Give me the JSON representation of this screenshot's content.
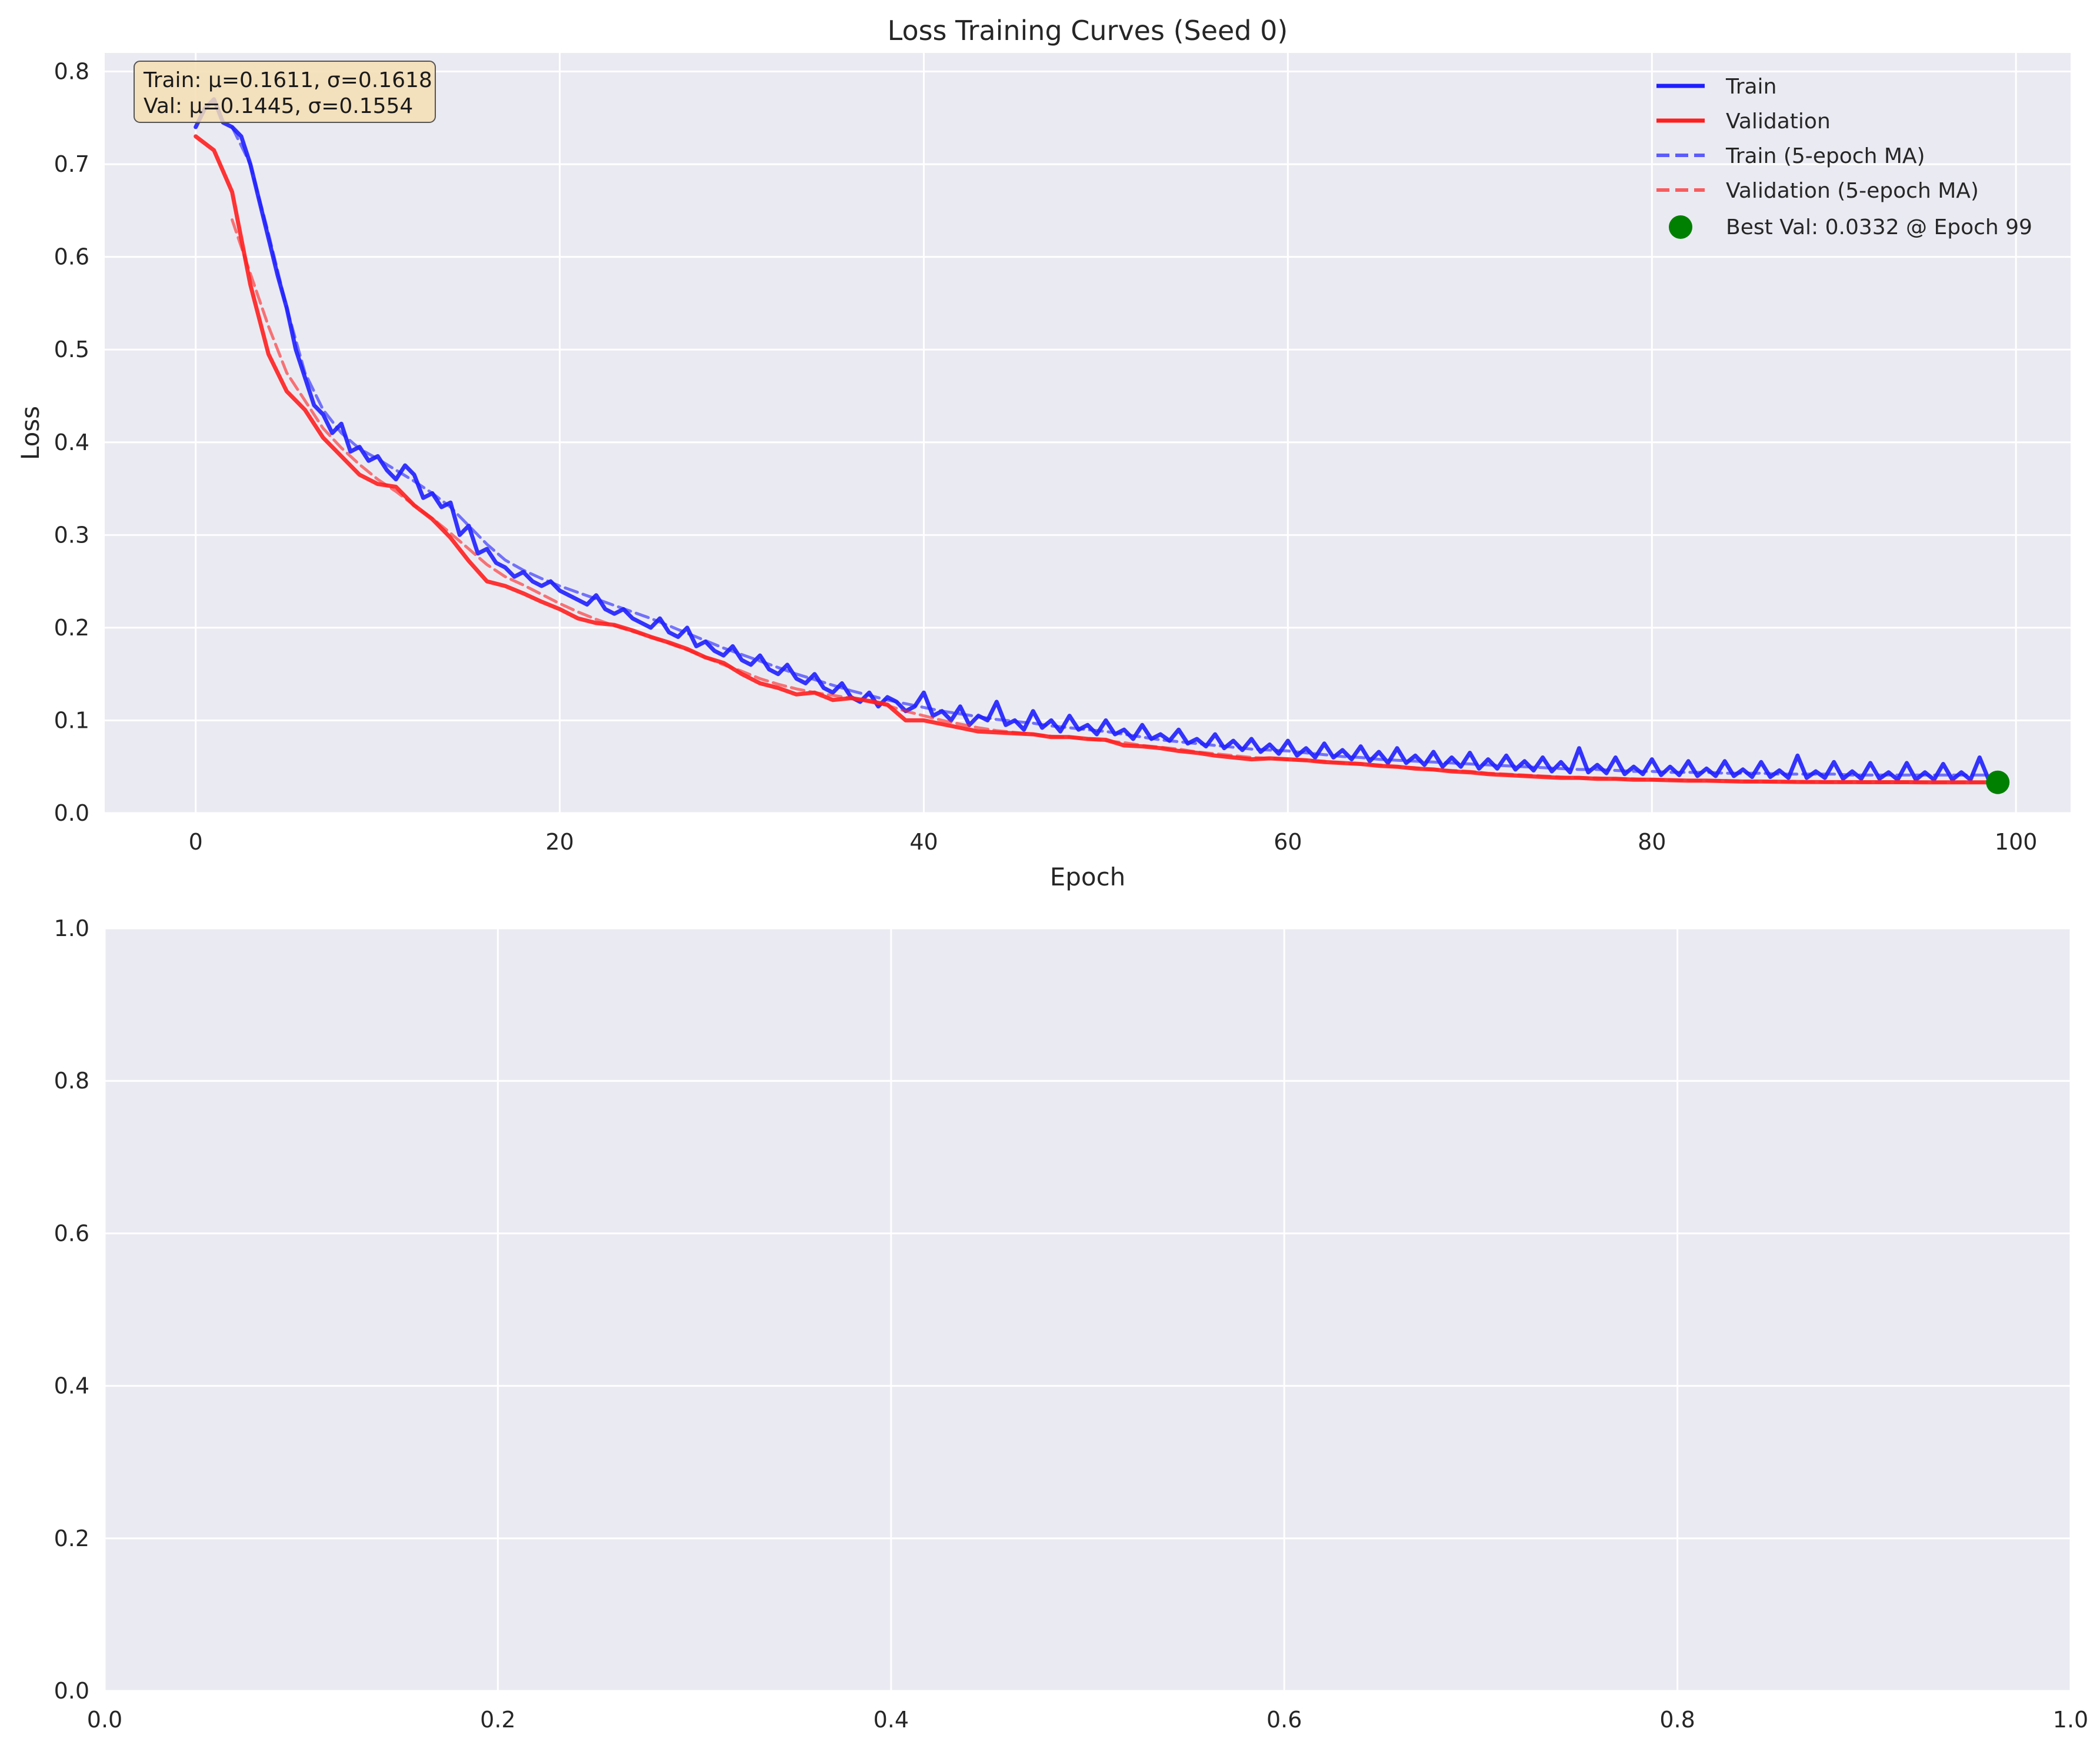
{
  "colors": {
    "axes_bg": "#eaeaf2",
    "grid": "#ffffff",
    "train": "#1f1fff",
    "validation": "#ff1f1f",
    "best_marker": "#008000",
    "stats_box": "#f5deb3"
  },
  "chart_data": [
    {
      "type": "line",
      "title": "Loss Training Curves (Seed 0)",
      "xlabel": "Epoch",
      "ylabel": "Loss",
      "xlim": [
        -5,
        103
      ],
      "ylim": [
        0,
        0.82
      ],
      "xticks": [
        0,
        20,
        40,
        60,
        80,
        100
      ],
      "xtick_labels": [
        "0",
        "20",
        "40",
        "60",
        "80",
        "100"
      ],
      "yticks": [
        0,
        0.1,
        0.2,
        0.3,
        0.4,
        0.5,
        0.6,
        0.7,
        0.8
      ],
      "ytick_labels": [
        "0.0",
        "0.1",
        "0.2",
        "0.3",
        "0.4",
        "0.5",
        "0.6",
        "0.7",
        "0.8"
      ],
      "grid": true,
      "legend_position": "top-right",
      "stats_box": {
        "line1": "Train: μ=0.1611, σ=0.1618",
        "line2": "Val: μ=0.1445, σ=0.1554"
      },
      "series": [
        {
          "name": "Train",
          "style": "solid",
          "x": [
            0,
            0.5,
            1,
            1.5,
            2,
            2.5,
            3,
            3.5,
            4,
            4.5,
            5,
            5.5,
            6,
            6.5,
            7,
            7.5,
            8,
            8.5,
            9,
            9.5,
            10,
            10.5,
            11,
            11.5,
            12,
            12.5,
            13,
            13.5,
            14,
            14.5,
            15,
            15.5,
            16,
            16.5,
            17,
            17.5,
            18,
            18.5,
            19,
            19.5,
            20,
            20.5,
            21,
            21.5,
            22,
            22.5,
            23,
            23.5,
            24,
            24.5,
            25,
            25.5,
            26,
            26.5,
            27,
            27.5,
            28,
            28.5,
            29,
            29.5,
            30,
            30.5,
            31,
            31.5,
            32,
            32.5,
            33,
            33.5,
            34,
            34.5,
            35,
            35.5,
            36,
            36.5,
            37,
            37.5,
            38,
            38.5,
            39,
            39.5,
            40,
            40.5,
            41,
            41.5,
            42,
            42.5,
            43,
            43.5,
            44,
            44.5,
            45,
            45.5,
            46,
            46.5,
            47,
            47.5,
            48,
            48.5,
            49,
            49.5,
            50,
            50.5,
            51,
            51.5,
            52,
            52.5,
            53,
            53.5,
            54,
            54.5,
            55,
            55.5,
            56,
            56.5,
            57,
            57.5,
            58,
            58.5,
            59,
            59.5,
            60,
            60.5,
            61,
            61.5,
            62,
            62.5,
            63,
            63.5,
            64,
            64.5,
            65,
            65.5,
            66,
            66.5,
            67,
            67.5,
            68,
            68.5,
            69,
            69.5,
            70,
            70.5,
            71,
            71.5,
            72,
            72.5,
            73,
            73.5,
            74,
            74.5,
            75,
            75.5,
            76,
            76.5,
            77,
            77.5,
            78,
            78.5,
            79,
            79.5,
            80,
            80.5,
            81,
            81.5,
            82,
            82.5,
            83,
            83.5,
            84,
            84.5,
            85,
            85.5,
            86,
            86.5,
            87,
            87.5,
            88,
            88.5,
            89,
            89.5,
            90,
            90.5,
            91,
            91.5,
            92,
            92.5,
            93,
            93.5,
            94,
            94.5,
            95,
            95.5,
            96,
            96.5,
            97,
            97.5,
            98,
            98.5,
            99
          ],
          "y": [
            0.74,
            0.76,
            0.77,
            0.745,
            0.74,
            0.73,
            0.7,
            0.66,
            0.62,
            0.58,
            0.545,
            0.5,
            0.47,
            0.44,
            0.43,
            0.41,
            0.42,
            0.39,
            0.395,
            0.38,
            0.385,
            0.37,
            0.36,
            0.375,
            0.365,
            0.34,
            0.345,
            0.33,
            0.335,
            0.3,
            0.31,
            0.28,
            0.285,
            0.27,
            0.265,
            0.255,
            0.26,
            0.25,
            0.245,
            0.25,
            0.24,
            0.235,
            0.23,
            0.225,
            0.235,
            0.22,
            0.215,
            0.22,
            0.21,
            0.205,
            0.2,
            0.21,
            0.195,
            0.19,
            0.2,
            0.18,
            0.185,
            0.175,
            0.17,
            0.18,
            0.165,
            0.16,
            0.17,
            0.155,
            0.15,
            0.16,
            0.145,
            0.14,
            0.15,
            0.135,
            0.13,
            0.14,
            0.125,
            0.12,
            0.13,
            0.115,
            0.125,
            0.12,
            0.11,
            0.115,
            0.13,
            0.105,
            0.11,
            0.1,
            0.115,
            0.095,
            0.105,
            0.1,
            0.12,
            0.095,
            0.1,
            0.09,
            0.11,
            0.092,
            0.1,
            0.088,
            0.105,
            0.09,
            0.095,
            0.085,
            0.1,
            0.085,
            0.09,
            0.08,
            0.095,
            0.08,
            0.085,
            0.078,
            0.09,
            0.075,
            0.08,
            0.072,
            0.085,
            0.07,
            0.078,
            0.068,
            0.08,
            0.066,
            0.074,
            0.064,
            0.078,
            0.062,
            0.07,
            0.06,
            0.075,
            0.06,
            0.068,
            0.058,
            0.072,
            0.056,
            0.066,
            0.054,
            0.07,
            0.054,
            0.062,
            0.052,
            0.066,
            0.05,
            0.06,
            0.05,
            0.065,
            0.048,
            0.058,
            0.048,
            0.062,
            0.047,
            0.056,
            0.046,
            0.06,
            0.045,
            0.055,
            0.044,
            0.07,
            0.044,
            0.052,
            0.043,
            0.06,
            0.042,
            0.05,
            0.042,
            0.058,
            0.041,
            0.05,
            0.041,
            0.056,
            0.04,
            0.048,
            0.04,
            0.056,
            0.04,
            0.047,
            0.039,
            0.055,
            0.039,
            0.046,
            0.038,
            0.062,
            0.038,
            0.045,
            0.038,
            0.055,
            0.037,
            0.045,
            0.037,
            0.054,
            0.037,
            0.044,
            0.036,
            0.054,
            0.036,
            0.044,
            0.036,
            0.053,
            0.036,
            0.044,
            0.036,
            0.06,
            0.036,
            0.042
          ]
        },
        {
          "name": "Validation",
          "style": "solid",
          "x": [
            0,
            1,
            2,
            3,
            4,
            5,
            6,
            7,
            8,
            9,
            10,
            11,
            12,
            13,
            14,
            15,
            16,
            17,
            18,
            19,
            20,
            21,
            22,
            23,
            24,
            25,
            26,
            27,
            28,
            29,
            30,
            31,
            32,
            33,
            34,
            35,
            36,
            37,
            38,
            39,
            40,
            41,
            42,
            43,
            44,
            45,
            46,
            47,
            48,
            49,
            50,
            51,
            52,
            53,
            54,
            55,
            56,
            57,
            58,
            59,
            60,
            61,
            62,
            63,
            64,
            65,
            66,
            67,
            68,
            69,
            70,
            71,
            72,
            73,
            74,
            75,
            76,
            77,
            78,
            79,
            80,
            81,
            82,
            83,
            84,
            85,
            86,
            87,
            88,
            89,
            90,
            91,
            92,
            93,
            94,
            95,
            96,
            97,
            98,
            99
          ],
          "y": [
            0.73,
            0.715,
            0.67,
            0.57,
            0.495,
            0.455,
            0.435,
            0.405,
            0.385,
            0.365,
            0.355,
            0.352,
            0.332,
            0.317,
            0.297,
            0.272,
            0.25,
            0.245,
            0.237,
            0.228,
            0.22,
            0.21,
            0.205,
            0.203,
            0.197,
            0.19,
            0.184,
            0.177,
            0.168,
            0.162,
            0.15,
            0.14,
            0.135,
            0.128,
            0.13,
            0.122,
            0.124,
            0.121,
            0.117,
            0.1,
            0.1,
            0.096,
            0.092,
            0.088,
            0.087,
            0.086,
            0.085,
            0.082,
            0.082,
            0.08,
            0.079,
            0.073,
            0.072,
            0.07,
            0.067,
            0.065,
            0.062,
            0.06,
            0.058,
            0.059,
            0.058,
            0.057,
            0.055,
            0.054,
            0.053,
            0.051,
            0.05,
            0.048,
            0.047,
            0.045,
            0.044,
            0.042,
            0.041,
            0.04,
            0.039,
            0.038,
            0.038,
            0.037,
            0.037,
            0.036,
            0.036,
            0.0355,
            0.035,
            0.035,
            0.0345,
            0.034,
            0.034,
            0.0338,
            0.0336,
            0.0335,
            0.0334,
            0.0334,
            0.0333,
            0.0333,
            0.0333,
            0.0332,
            0.0332,
            0.0332,
            0.0332,
            0.0332
          ]
        },
        {
          "name": "Train (5-epoch MA)",
          "style": "dashed",
          "x": [
            2,
            3,
            4,
            5,
            6,
            7,
            8,
            9,
            10,
            11,
            12,
            13,
            14,
            15,
            16,
            17,
            18,
            19,
            20,
            21,
            22,
            23,
            24,
            25,
            26,
            27,
            28,
            29,
            30,
            31,
            32,
            33,
            34,
            35,
            36,
            37,
            38,
            39,
            40,
            41,
            42,
            43,
            44,
            45,
            46,
            47,
            48,
            49,
            50,
            51,
            52,
            53,
            54,
            55,
            56,
            57,
            58,
            59,
            60,
            61,
            62,
            63,
            64,
            65,
            66,
            67,
            68,
            69,
            70,
            71,
            72,
            73,
            74,
            75,
            76,
            77,
            78,
            79,
            80,
            81,
            82,
            83,
            84,
            85,
            86,
            87,
            88,
            89,
            90,
            91,
            92,
            93,
            94,
            95,
            96,
            97,
            98,
            99
          ],
          "y": [
            0.74,
            0.7,
            0.625,
            0.545,
            0.475,
            0.435,
            0.41,
            0.393,
            0.382,
            0.37,
            0.358,
            0.345,
            0.33,
            0.31,
            0.29,
            0.273,
            0.262,
            0.253,
            0.245,
            0.238,
            0.231,
            0.224,
            0.217,
            0.21,
            0.202,
            0.194,
            0.186,
            0.178,
            0.171,
            0.164,
            0.157,
            0.15,
            0.144,
            0.138,
            0.132,
            0.127,
            0.122,
            0.118,
            0.114,
            0.11,
            0.107,
            0.104,
            0.101,
            0.099,
            0.097,
            0.094,
            0.092,
            0.09,
            0.088,
            0.085,
            0.082,
            0.079,
            0.077,
            0.075,
            0.073,
            0.071,
            0.069,
            0.068,
            0.067,
            0.065,
            0.063,
            0.061,
            0.06,
            0.058,
            0.057,
            0.056,
            0.055,
            0.054,
            0.053,
            0.052,
            0.051,
            0.05,
            0.049,
            0.048,
            0.047,
            0.047,
            0.046,
            0.045,
            0.045,
            0.044,
            0.044,
            0.044,
            0.043,
            0.043,
            0.043,
            0.042,
            0.042,
            0.042,
            0.042,
            0.041,
            0.041,
            0.041,
            0.041,
            0.041,
            0.041,
            0.041,
            0.041,
            0.041
          ]
        },
        {
          "name": "Validation (5-epoch MA)",
          "style": "dashed",
          "x": [
            2,
            3,
            4,
            5,
            6,
            7,
            8,
            9,
            10,
            11,
            12,
            13,
            14,
            15,
            16,
            17,
            18,
            19,
            20,
            21,
            22,
            23,
            24,
            25,
            26,
            27,
            28,
            29,
            30,
            31,
            32,
            33,
            34,
            35,
            36,
            37,
            38,
            39,
            40,
            41,
            42,
            43,
            44,
            45,
            46,
            47,
            48,
            49,
            50,
            51,
            52,
            53,
            54,
            55,
            56,
            57,
            58,
            59,
            60,
            61,
            62,
            63,
            64,
            65,
            66,
            67,
            68,
            69,
            70,
            71,
            72,
            73,
            74,
            75,
            76,
            77,
            78,
            79,
            80,
            81,
            82,
            83,
            84,
            85,
            86,
            87,
            88,
            89,
            90,
            91,
            92,
            93,
            94,
            95,
            96,
            97,
            98,
            99
          ],
          "y": [
            0.64,
            0.582,
            0.525,
            0.475,
            0.445,
            0.415,
            0.394,
            0.376,
            0.36,
            0.347,
            0.332,
            0.318,
            0.302,
            0.285,
            0.268,
            0.255,
            0.246,
            0.236,
            0.226,
            0.217,
            0.209,
            0.202,
            0.196,
            0.19,
            0.183,
            0.176,
            0.168,
            0.16,
            0.153,
            0.145,
            0.139,
            0.134,
            0.13,
            0.127,
            0.124,
            0.12,
            0.116,
            0.11,
            0.105,
            0.1,
            0.096,
            0.092,
            0.089,
            0.087,
            0.085,
            0.083,
            0.082,
            0.08,
            0.078,
            0.076,
            0.073,
            0.071,
            0.069,
            0.066,
            0.064,
            0.062,
            0.06,
            0.059,
            0.058,
            0.057,
            0.056,
            0.054,
            0.053,
            0.052,
            0.05,
            0.049,
            0.047,
            0.046,
            0.045,
            0.043,
            0.042,
            0.041,
            0.04,
            0.039,
            0.038,
            0.038,
            0.037,
            0.037,
            0.036,
            0.036,
            0.0355,
            0.035,
            0.035,
            0.0345,
            0.034,
            0.034,
            0.0338,
            0.0336,
            0.0335,
            0.0334,
            0.0334,
            0.0333,
            0.0333,
            0.0333,
            0.0332,
            0.0332,
            0.0332,
            0.0332
          ]
        }
      ],
      "best_point": {
        "label": "Best Val: 0.0332 @ Epoch 99",
        "x": 99,
        "y": 0.0332
      }
    },
    {
      "type": "line",
      "title": "",
      "xlabel": "",
      "ylabel": "",
      "xlim": [
        0,
        1
      ],
      "ylim": [
        0,
        1
      ],
      "xticks": [
        0,
        0.2,
        0.4,
        0.6,
        0.8,
        1.0
      ],
      "xtick_labels": [
        "0.0",
        "0.2",
        "0.4",
        "0.6",
        "0.8",
        "1.0"
      ],
      "yticks": [
        0,
        0.2,
        0.4,
        0.6,
        0.8,
        1.0
      ],
      "ytick_labels": [
        "0.0",
        "0.2",
        "0.4",
        "0.6",
        "0.8",
        "1.0"
      ],
      "grid": true,
      "series": []
    }
  ]
}
